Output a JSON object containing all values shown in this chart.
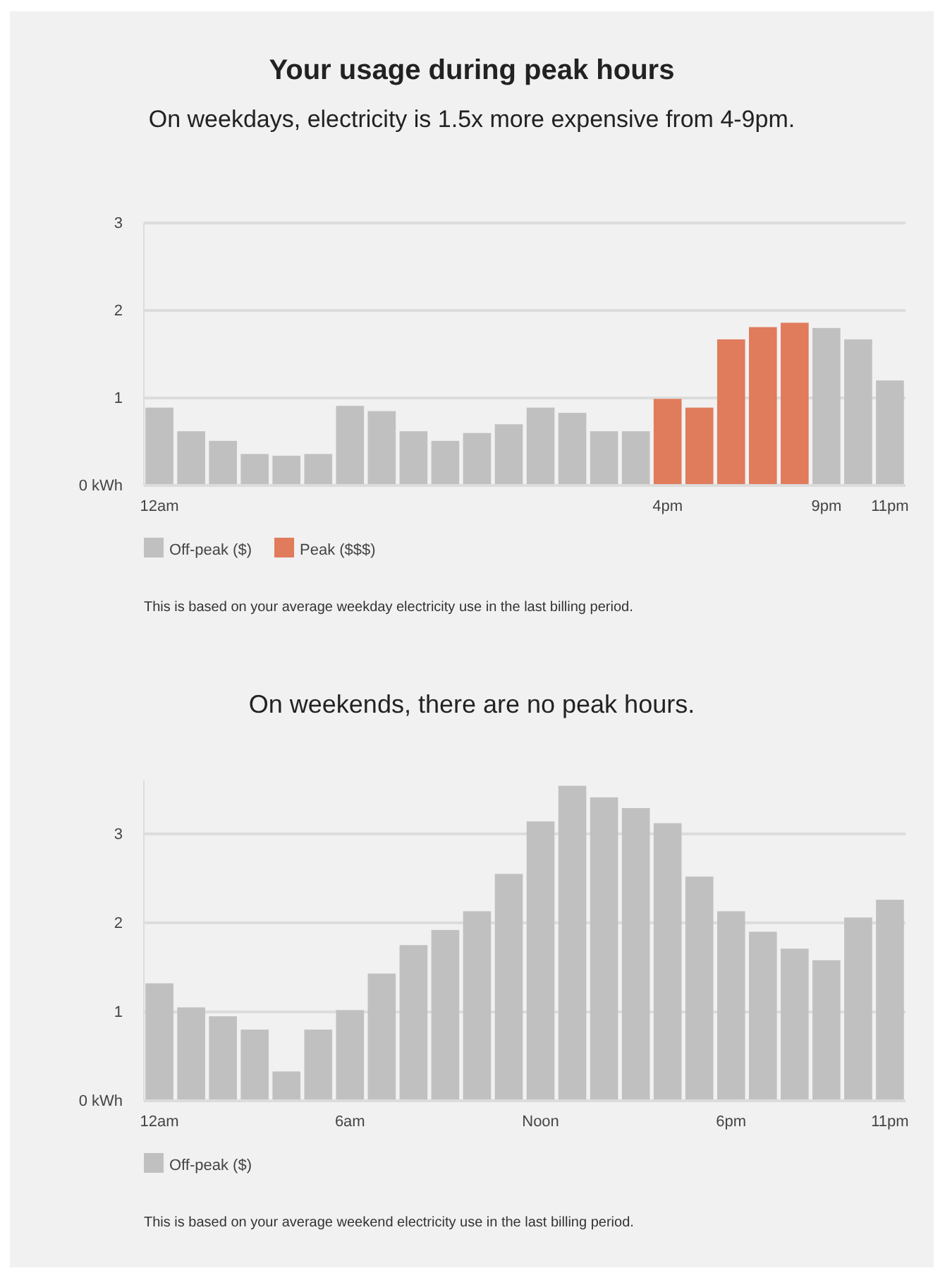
{
  "chart_data": [
    {
      "type": "bar",
      "title": "Your usage during peak hours",
      "subtitle": "On weekdays, electricity is 1.5x more expensive from 4-9pm.",
      "categories": [
        "12am",
        null,
        null,
        null,
        null,
        null,
        null,
        null,
        null,
        null,
        null,
        null,
        null,
        null,
        null,
        null,
        "4pm",
        null,
        null,
        null,
        null,
        "9pm",
        null,
        "11pm"
      ],
      "series": [
        {
          "name": "Off-peak ($)",
          "color": "#c0c0c0",
          "values": [
            0.89,
            0.62,
            0.51,
            0.36,
            0.34,
            0.36,
            0.91,
            0.85,
            0.62,
            0.51,
            0.6,
            0.7,
            0.89,
            0.83,
            0.62,
            0.62,
            null,
            null,
            null,
            null,
            null,
            1.8,
            1.67,
            1.2
          ]
        },
        {
          "name": "Peak ($$$)",
          "color": "#e07b5c",
          "values": [
            null,
            null,
            null,
            null,
            null,
            null,
            null,
            null,
            null,
            null,
            null,
            null,
            null,
            null,
            null,
            null,
            0.99,
            0.89,
            1.67,
            1.81,
            1.86,
            null,
            null,
            null
          ]
        }
      ],
      "ylim": [
        0,
        3
      ],
      "yticks": [
        {
          "value": 0,
          "label": "0 kWh"
        },
        1,
        2,
        3
      ],
      "grid": "y",
      "legend": "bottom",
      "annotations": [
        "This is based on your average weekday electricity use in the last billing period."
      ]
    },
    {
      "type": "bar",
      "title": "On weekends, there are no peak hours.",
      "categories": [
        "12am",
        null,
        null,
        null,
        null,
        null,
        "6am",
        null,
        null,
        null,
        null,
        null,
        "Noon",
        null,
        null,
        null,
        null,
        null,
        "6pm",
        null,
        null,
        null,
        null,
        "11pm"
      ],
      "series": [
        {
          "name": "Off-peak ($)",
          "color": "#c0c0c0",
          "values": [
            1.32,
            1.05,
            0.95,
            0.8,
            0.33,
            0.8,
            1.02,
            1.43,
            1.75,
            1.92,
            2.13,
            2.55,
            3.14,
            3.54,
            3.41,
            3.29,
            3.12,
            2.52,
            2.13,
            1.9,
            1.71,
            1.58,
            2.06,
            2.26
          ]
        }
      ],
      "ylim": [
        0,
        3.6
      ],
      "yticks": [
        {
          "value": 0,
          "label": "0 kWh"
        },
        1,
        2,
        3
      ],
      "grid": "y",
      "legend": "bottom",
      "annotations": [
        "This is based on your average weekend electricity use in the last billing period."
      ]
    }
  ]
}
